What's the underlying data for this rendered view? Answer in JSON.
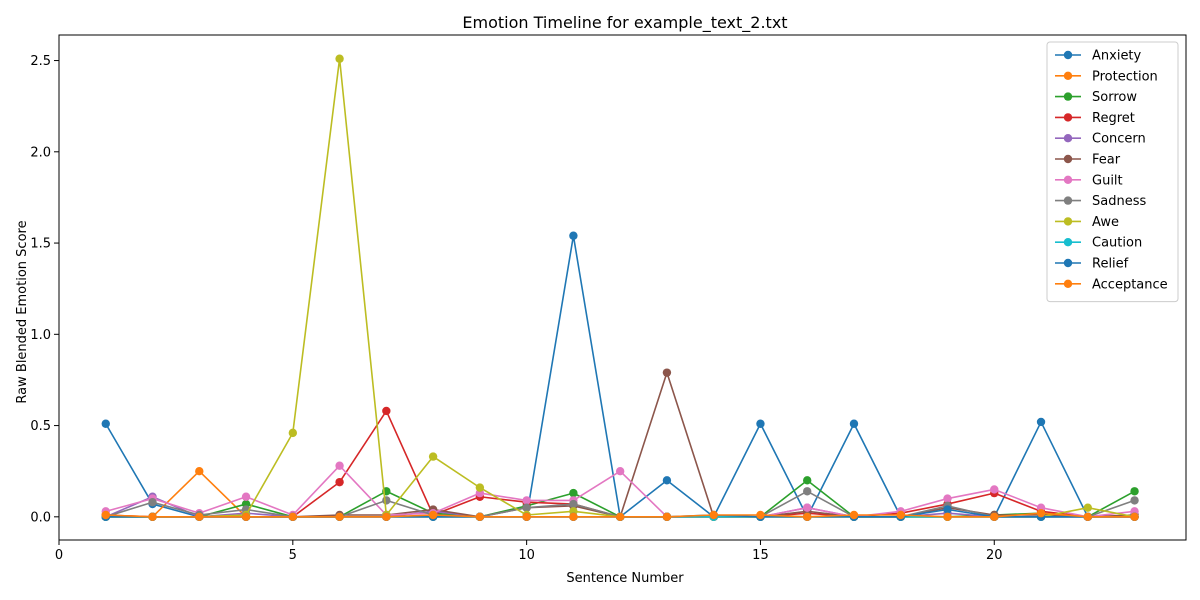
{
  "chart_data": {
    "type": "line",
    "title": "Emotion Timeline for example_text_2.txt",
    "xlabel": "Sentence Number",
    "ylabel": "Raw Blended Emotion Score",
    "xlim": [
      0,
      24.1
    ],
    "ylim": [
      -0.127,
      2.64
    ],
    "xticks": [
      0,
      5,
      10,
      15,
      20
    ],
    "yticks": [
      0.0,
      0.5,
      1.0,
      1.5,
      2.0,
      2.5
    ],
    "ytick_labels": [
      "0.0",
      "0.5",
      "1.0",
      "1.5",
      "2.0",
      "2.5"
    ],
    "grid": false,
    "legend_position": "top-right",
    "x": [
      1,
      2,
      3,
      4,
      5,
      6,
      7,
      8,
      9,
      10,
      11,
      12,
      13,
      14,
      15,
      16,
      17,
      18,
      19,
      20,
      21,
      22,
      23
    ],
    "series": [
      {
        "name": "Anxiety",
        "color": "#1f77b4",
        "values": [
          0.51,
          0.07,
          0.0,
          0.0,
          0.0,
          0.0,
          0.0,
          0.0,
          0.0,
          0.0,
          1.54,
          0.0,
          0.2,
          0.0,
          0.51,
          0.0,
          0.51,
          0.0,
          0.0,
          0.0,
          0.52,
          0.0,
          0.0
        ]
      },
      {
        "name": "Protection",
        "color": "#ff7f0e",
        "values": [
          0.0,
          0.0,
          0.25,
          0.0,
          0.0,
          0.0,
          0.0,
          0.0,
          0.0,
          0.0,
          0.0,
          0.0,
          0.0,
          0.0,
          0.0,
          0.0,
          0.0,
          0.0,
          0.0,
          0.0,
          0.0,
          0.0,
          0.0
        ]
      },
      {
        "name": "Sorrow",
        "color": "#2ca02c",
        "values": [
          0.0,
          0.0,
          0.0,
          0.07,
          0.0,
          0.0,
          0.14,
          0.02,
          0.0,
          0.06,
          0.13,
          0.0,
          0.0,
          0.0,
          0.0,
          0.2,
          0.0,
          0.0,
          0.0,
          0.01,
          0.02,
          0.0,
          0.14
        ]
      },
      {
        "name": "Regret",
        "color": "#d62728",
        "values": [
          0.01,
          0.0,
          0.0,
          0.0,
          0.0,
          0.19,
          0.58,
          0.01,
          0.11,
          0.08,
          0.07,
          0.0,
          0.0,
          0.0,
          0.0,
          0.02,
          0.0,
          0.02,
          0.07,
          0.13,
          0.03,
          0.0,
          0.0
        ]
      },
      {
        "name": "Concern",
        "color": "#9467bd",
        "values": [
          0.0,
          0.11,
          0.0,
          0.02,
          0.0,
          0.0,
          0.0,
          0.03,
          0.0,
          0.0,
          0.0,
          0.0,
          0.0,
          0.0,
          0.0,
          0.05,
          0.0,
          0.0,
          0.02,
          0.0,
          0.0,
          0.0,
          0.0
        ]
      },
      {
        "name": "Fear",
        "color": "#8c564b",
        "values": [
          0.0,
          0.0,
          0.0,
          0.0,
          0.0,
          0.01,
          0.01,
          0.04,
          0.0,
          0.05,
          0.06,
          0.0,
          0.79,
          0.0,
          0.0,
          0.03,
          0.0,
          0.0,
          0.05,
          0.01,
          0.01,
          0.0,
          0.01
        ]
      },
      {
        "name": "Guilt",
        "color": "#e377c2",
        "values": [
          0.03,
          0.1,
          0.02,
          0.11,
          0.01,
          0.28,
          0.01,
          0.02,
          0.13,
          0.09,
          0.09,
          0.25,
          0.0,
          0.0,
          0.0,
          0.05,
          0.0,
          0.03,
          0.1,
          0.15,
          0.05,
          0.0,
          0.03
        ]
      },
      {
        "name": "Sadness",
        "color": "#7f7f7f",
        "values": [
          0.0,
          0.08,
          0.01,
          0.04,
          0.0,
          0.0,
          0.09,
          0.01,
          0.0,
          0.05,
          0.07,
          0.0,
          0.0,
          0.0,
          0.0,
          0.14,
          0.0,
          0.0,
          0.06,
          0.0,
          0.0,
          0.0,
          0.09
        ]
      },
      {
        "name": "Awe",
        "color": "#bcbd22",
        "values": [
          0.0,
          0.0,
          0.0,
          0.01,
          0.46,
          2.51,
          0.01,
          0.33,
          0.16,
          0.01,
          0.03,
          0.0,
          0.0,
          0.0,
          0.0,
          0.0,
          0.0,
          0.0,
          0.0,
          0.0,
          0.0,
          0.05,
          0.0
        ]
      },
      {
        "name": "Caution",
        "color": "#17becf",
        "values": [
          0.0,
          0.0,
          0.0,
          0.0,
          0.0,
          0.0,
          0.0,
          0.0,
          0.0,
          0.0,
          0.0,
          0.0,
          0.0,
          0.0,
          0.0,
          0.0,
          0.0,
          0.0,
          0.0,
          0.0,
          0.0,
          0.0,
          0.0
        ]
      },
      {
        "name": "Relief",
        "color": "#1f77b4",
        "values": [
          0.0,
          0.0,
          0.0,
          0.0,
          0.0,
          0.0,
          0.0,
          0.0,
          0.0,
          0.0,
          0.0,
          0.0,
          0.0,
          0.01,
          0.0,
          0.0,
          0.0,
          0.0,
          0.04,
          0.0,
          0.0,
          0.0,
          0.0
        ]
      },
      {
        "name": "Acceptance",
        "color": "#ff7f0e",
        "values": [
          0.01,
          0.0,
          0.0,
          0.0,
          0.0,
          0.0,
          0.0,
          0.01,
          0.0,
          0.0,
          0.0,
          0.0,
          0.0,
          0.01,
          0.01,
          0.0,
          0.01,
          0.01,
          0.0,
          0.0,
          0.02,
          0.0,
          0.0
        ]
      }
    ]
  }
}
